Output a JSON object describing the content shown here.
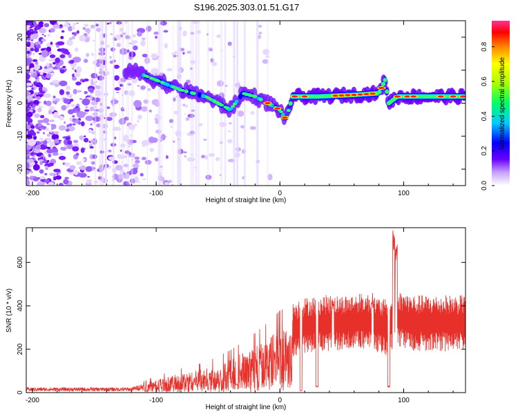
{
  "title": "S196.2025.303.01.51.G17",
  "chart_data": [
    {
      "type": "heatmap",
      "name": "spectrogram",
      "xlabel": "Height of straight line (km)",
      "ylabel": "Frequency (Hz)",
      "xlim": [
        -205,
        150
      ],
      "ylim": [
        -25,
        25
      ],
      "xticks": [
        -200,
        -100,
        0,
        100
      ],
      "yticks": [
        -20,
        -10,
        0,
        10,
        20
      ],
      "colorbar": {
        "label": "Normalized spectral amplitude",
        "range": [
          0,
          0.95
        ],
        "ticks": [
          "0.0",
          "0.2",
          "0.4",
          "0.6",
          "0.8"
        ]
      },
      "ridge": [
        {
          "x": -120,
          "y": 10
        },
        {
          "x": -100,
          "y": 7
        },
        {
          "x": -80,
          "y": 4
        },
        {
          "x": -60,
          "y": 2
        },
        {
          "x": -40,
          "y": -2
        },
        {
          "x": -30,
          "y": 3
        },
        {
          "x": -20,
          "y": 2
        },
        {
          "x": -10,
          "y": 0
        },
        {
          "x": 0,
          "y": -2
        },
        {
          "x": 5,
          "y": -5
        },
        {
          "x": 10,
          "y": 2
        },
        {
          "x": 30,
          "y": 2
        },
        {
          "x": 60,
          "y": 2.5
        },
        {
          "x": 80,
          "y": 3
        },
        {
          "x": 85,
          "y": 7
        },
        {
          "x": 88,
          "y": 0
        },
        {
          "x": 95,
          "y": 2
        },
        {
          "x": 120,
          "y": 2
        },
        {
          "x": 150,
          "y": 2
        }
      ]
    },
    {
      "type": "line",
      "name": "snr",
      "xlabel": "Height of straight line (km)",
      "ylabel": "SNR (10 * v/v)",
      "xlim": [
        -205,
        150
      ],
      "ylim": [
        0,
        760
      ],
      "xticks": [
        -200,
        -100,
        0,
        100
      ],
      "yticks": [
        0,
        200,
        400,
        600
      ],
      "color": "#e8302a",
      "envelope": [
        {
          "x": -205,
          "y": 20
        },
        {
          "x": -120,
          "y": 20
        },
        {
          "x": -100,
          "y": 55
        },
        {
          "x": -80,
          "y": 80
        },
        {
          "x": -60,
          "y": 100
        },
        {
          "x": -40,
          "y": 140
        },
        {
          "x": -25,
          "y": 180
        },
        {
          "x": -10,
          "y": 230
        },
        {
          "x": 0,
          "y": 270
        },
        {
          "x": 10,
          "y": 290
        },
        {
          "x": 20,
          "y": 310
        },
        {
          "x": 35,
          "y": 320
        },
        {
          "x": 50,
          "y": 320
        },
        {
          "x": 70,
          "y": 330
        },
        {
          "x": 85,
          "y": 300
        },
        {
          "x": 90,
          "y": 320
        },
        {
          "x": 95,
          "y": 340
        },
        {
          "x": 110,
          "y": 320
        },
        {
          "x": 150,
          "y": 320
        }
      ],
      "spikes": [
        {
          "x": 92,
          "y": 750
        },
        {
          "x": 94,
          "y": 700
        },
        {
          "x": 88,
          "y": 30
        },
        {
          "x": 30,
          "y": 30
        },
        {
          "x": 17,
          "y": 10
        },
        {
          "x": -35,
          "y": 40
        },
        {
          "x": 43,
          "y": 450
        },
        {
          "x": 75,
          "y": 460
        }
      ]
    }
  ]
}
